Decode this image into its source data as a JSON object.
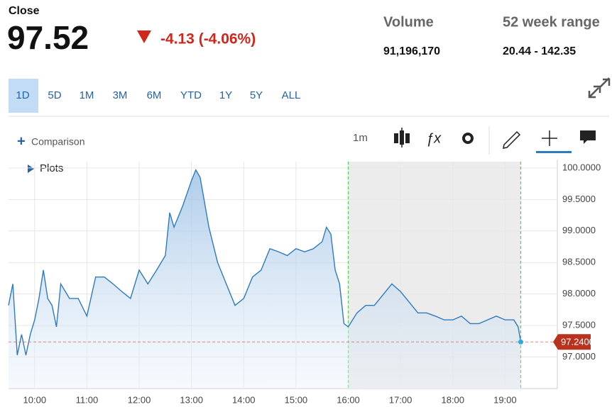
{
  "header": {
    "close_label": "Close",
    "price": "97.52",
    "change": "-4.13 (-4.06%)",
    "volume_label": "Volume",
    "volume": "91,196,170",
    "range_label": "52 week range",
    "range": "20.44 - 142.35"
  },
  "toolbar": {
    "ranges": [
      "1D",
      "5D",
      "1M",
      "3M",
      "6M",
      "YTD",
      "1Y",
      "5Y",
      "ALL"
    ],
    "comparison": "Comparison",
    "interval": "1m",
    "plots": "Plots"
  },
  "chart_data": {
    "type": "line",
    "color": "#2f7bbf",
    "x": [
      "09:30",
      "09:35",
      "09:40",
      "09:45",
      "09:50",
      "09:55",
      "10:00",
      "10:05",
      "10:10",
      "10:15",
      "10:20",
      "10:25",
      "10:30",
      "10:40",
      "10:50",
      "11:00",
      "11:10",
      "11:20",
      "11:30",
      "11:40",
      "11:50",
      "12:00",
      "12:10",
      "12:20",
      "12:30",
      "12:35",
      "12:40",
      "12:50",
      "13:00",
      "13:05",
      "13:10",
      "13:20",
      "13:30",
      "13:40",
      "13:50",
      "14:00",
      "14:10",
      "14:20",
      "14:30",
      "14:40",
      "14:50",
      "15:00",
      "15:10",
      "15:20",
      "15:30",
      "15:35",
      "15:40",
      "15:45",
      "15:50",
      "15:55",
      "16:00",
      "16:10",
      "16:20",
      "16:30",
      "16:40",
      "16:50",
      "17:00",
      "17:10",
      "17:20",
      "17:30",
      "17:40",
      "17:50",
      "18:00",
      "18:10",
      "18:20",
      "18:30",
      "18:40",
      "18:50",
      "19:00",
      "19:10",
      "19:15",
      "19:18"
    ],
    "values": [
      97.82,
      98.16,
      97.03,
      97.36,
      97.03,
      97.36,
      97.59,
      97.93,
      98.38,
      97.93,
      97.82,
      97.48,
      98.16,
      97.93,
      97.93,
      97.65,
      98.27,
      98.27,
      98.16,
      98.04,
      97.93,
      98.38,
      98.16,
      98.38,
      98.61,
      99.29,
      99.06,
      99.4,
      99.8,
      99.97,
      99.85,
      99.06,
      98.5,
      98.16,
      97.82,
      97.93,
      98.27,
      98.38,
      98.72,
      98.67,
      98.61,
      98.72,
      98.67,
      98.72,
      98.83,
      99.06,
      98.95,
      98.38,
      98.16,
      97.53,
      97.48,
      97.7,
      97.82,
      97.82,
      97.99,
      98.16,
      98.04,
      97.87,
      97.7,
      97.7,
      97.65,
      97.59,
      97.59,
      97.65,
      97.53,
      97.53,
      97.59,
      97.65,
      97.59,
      97.59,
      97.48,
      97.24
    ],
    "xlim": [
      "09:30",
      "20:00"
    ],
    "xticks": [
      "10:00",
      "11:00",
      "12:00",
      "13:00",
      "14:00",
      "15:00",
      "16:00",
      "17:00",
      "18:00",
      "19:00"
    ],
    "ylim": [
      96.5,
      100.1
    ],
    "yticks": [
      {
        "value": 97,
        "label": "97.0000"
      },
      {
        "value": 97.5,
        "label": "97.5000"
      },
      {
        "value": 98,
        "label": "98.0000"
      },
      {
        "value": 98.5,
        "label": "98.5000"
      },
      {
        "value": 99,
        "label": "99.0000"
      },
      {
        "value": 99.5,
        "label": "99.5000"
      },
      {
        "value": 100,
        "label": "100.0000"
      }
    ],
    "grid": true,
    "last_value": {
      "value": 97.24,
      "label": "97.2400"
    },
    "extended_hours": [
      "16:00",
      "19:18"
    ]
  }
}
